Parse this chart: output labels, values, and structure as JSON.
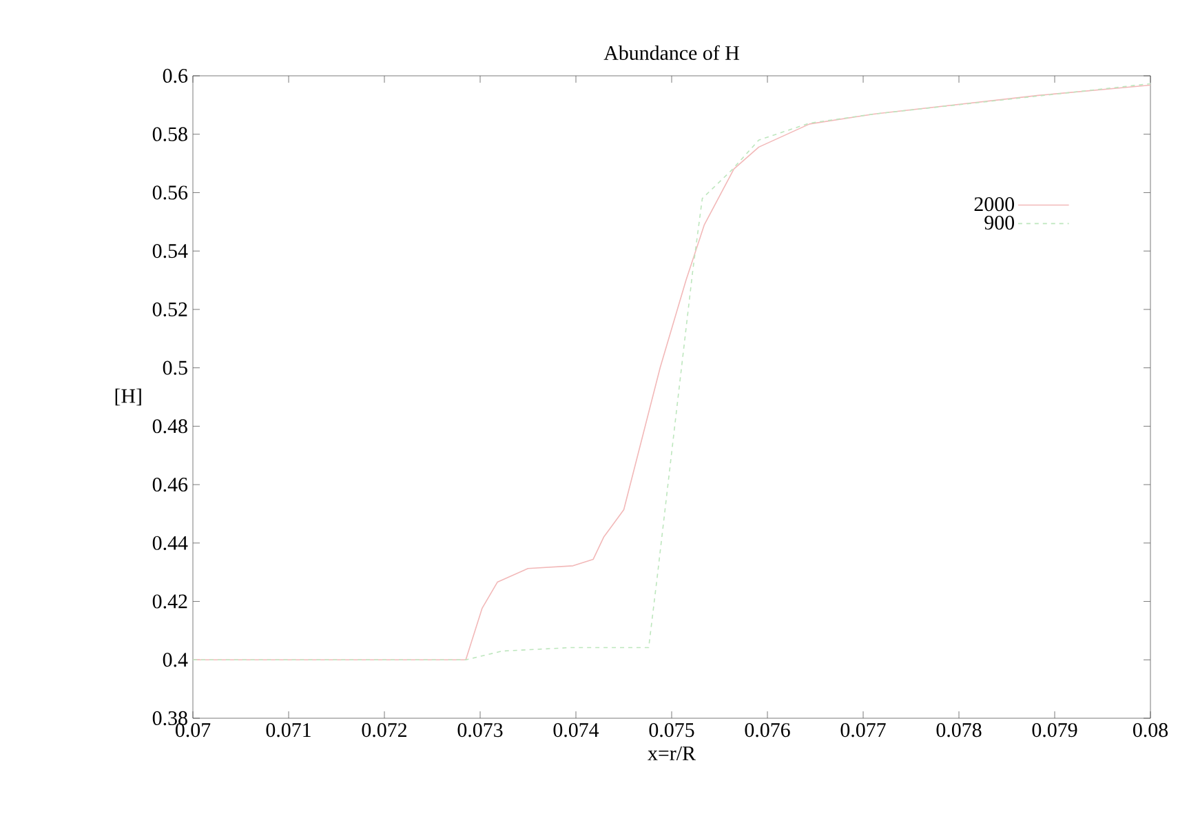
{
  "chart_data": {
    "type": "line",
    "title": "Abundance of H",
    "xlabel": "x=r/R",
    "ylabel": "[H]",
    "series": [
      {
        "name": "2000",
        "color": "#f2b8b8",
        "line_style": "solid",
        "x": [
          0.07,
          0.07285,
          0.07302,
          0.07318,
          0.0735,
          0.07397,
          0.07418,
          0.07429,
          0.0745,
          0.07488,
          0.07515,
          0.07534,
          0.07565,
          0.07591,
          0.07644,
          0.07711,
          0.07883,
          0.08
        ],
        "values": [
          0.4,
          0.4,
          0.4176,
          0.4266,
          0.4313,
          0.4322,
          0.4344,
          0.442,
          0.4514,
          0.5001,
          0.53,
          0.5489,
          0.5681,
          0.5756,
          0.5835,
          0.5869,
          0.5933,
          0.5968
        ]
      },
      {
        "name": "900",
        "color": "#bde6bd",
        "line_style": "dashed",
        "x": [
          0.07,
          0.07285,
          0.07323,
          0.07395,
          0.07476,
          0.07485,
          0.07522,
          0.07532,
          0.07563,
          0.07591,
          0.07644,
          0.07711,
          0.08
        ],
        "values": [
          0.4,
          0.4,
          0.403,
          0.4042,
          0.4042,
          0.4286,
          0.5332,
          0.558,
          0.5678,
          0.578,
          0.5838,
          0.5869,
          0.5973
        ]
      }
    ],
    "xlim": [
      0.07,
      0.08
    ],
    "xticks": [
      0.07,
      0.071,
      0.072,
      0.073,
      0.074,
      0.075,
      0.076,
      0.077,
      0.078,
      0.079,
      0.08
    ],
    "ylim": [
      0.38,
      0.6
    ],
    "yticks": [
      0.38,
      0.4,
      0.42,
      0.44,
      0.46,
      0.48,
      0.5,
      0.52,
      0.54,
      0.56,
      0.58,
      0.6
    ],
    "legend": "top right",
    "grid": false,
    "marker": "none"
  }
}
